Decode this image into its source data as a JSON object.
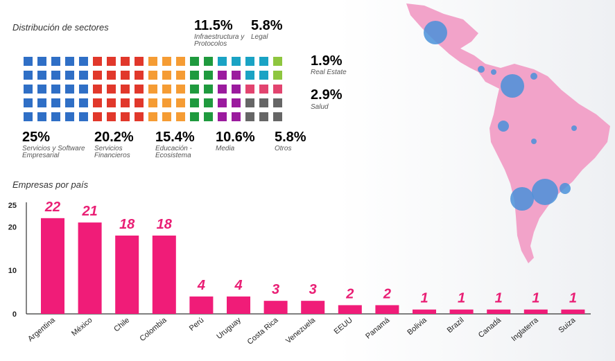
{
  "waffle_title": "Distribución de sectores",
  "bar_title": "Empresas por país",
  "colors": {
    "servicios": "#2f6fc6",
    "financieros": "#e1382b",
    "educacion": "#f59c34",
    "infra": "#1f9a3e",
    "media": "#9b1b9e",
    "legal": "#1aa3c4",
    "otros": "#666666",
    "real_estate": "#8ec63f",
    "salud": "#e2446f",
    "bars": "#f01c78",
    "map": "#f2a3c9",
    "bubbles": "#4a90d9"
  },
  "sectors": [
    {
      "pct": "25%",
      "label": "Servicios y Software Empresarial",
      "color": "#2f6fc6"
    },
    {
      "pct": "20.2%",
      "label": "Servicios Financieros",
      "color": "#e1382b"
    },
    {
      "pct": "15.4%",
      "label": "Educación - Ecosistema",
      "color": "#f59c34"
    },
    {
      "pct": "10.6%",
      "label": "Media",
      "color": "#9b1b9e"
    },
    {
      "pct": "5.8%",
      "label": "Otros",
      "color": "#666666"
    },
    {
      "pct": "11.5%",
      "label": "Infraestructura y Protocolos",
      "color": "#1f9a3e"
    },
    {
      "pct": "5.8%",
      "label": "Legal",
      "color": "#1aa3c4"
    },
    {
      "pct": "1.9%",
      "label": "Real Estate",
      "color": "#8ec63f"
    },
    {
      "pct": "2.9%",
      "label": "Salud",
      "color": "#e2446f"
    }
  ],
  "chart_data": [
    {
      "type": "waffle",
      "title": "Distribución de sectores",
      "categories": [
        "Servicios y Software Empresarial",
        "Servicios Financieros",
        "Educación - Ecosistema",
        "Infraestructura y Protocolos",
        "Media",
        "Legal",
        "Otros",
        "Real Estate",
        "Salud"
      ],
      "values": [
        25,
        20.2,
        15.4,
        11.5,
        10.6,
        5.8,
        5.8,
        1.9,
        2.9
      ],
      "unit": "%"
    },
    {
      "type": "bar",
      "title": "Empresas por país",
      "categories": [
        "Argentina",
        "México",
        "Chile",
        "Colombia",
        "Perú",
        "Uruguay",
        "Costa Rica",
        "Venezuela",
        "EEUU",
        "Panamá",
        "Bolivia",
        "Brazil",
        "Canadá",
        "Inglaterra",
        "Suiza"
      ],
      "values": [
        22,
        21,
        18,
        18,
        4,
        4,
        3,
        3,
        2,
        2,
        1,
        1,
        1,
        1,
        1
      ],
      "yticks": [
        0,
        10,
        20,
        25
      ],
      "ylim": [
        0,
        25
      ]
    }
  ]
}
